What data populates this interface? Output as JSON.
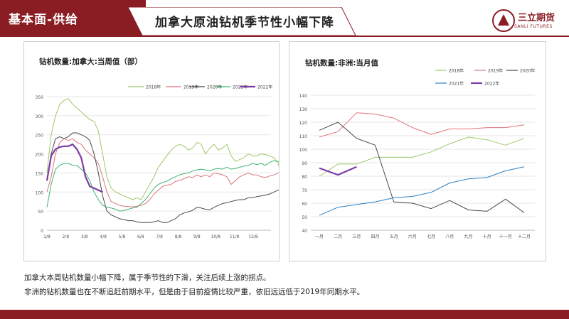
{
  "header": {
    "section": "基本面-供给",
    "title": "加拿大原油钻机季节性小幅下降",
    "logo_text": "三立期货",
    "logo_sub": "SANLI FUTURES"
  },
  "notes": [
    "加拿大本周钻机数量小幅下降，属于季节性的下滑，关注后续上涨的拐点。",
    "非洲的钻机数量也在不断追赶前期水平，但是由于目前疫情比较严重，依旧远远低于2019年同期水平。"
  ],
  "colors": {
    "2018": "#9dc86a",
    "2019": "#e0737a",
    "2020": "#4a4a4a",
    "2021_left": "#3cb371",
    "2021_right": "#2e7fbf",
    "2022": "#7b3aa6",
    "brand": "#8a1d24"
  },
  "chart_data": [
    {
      "type": "line",
      "title": "钻机数量:加拿大:当周值（部）",
      "x_ticks": [
        "1/8",
        "2/8",
        "3/8",
        "4/8",
        "5/8",
        "6/8",
        "7/8",
        "8/8",
        "9/8",
        "10/8",
        "11/8",
        "12/8"
      ],
      "ylim": [
        0,
        350
      ],
      "y_ticks": [
        0,
        50,
        100,
        150,
        200,
        250,
        300,
        350
      ],
      "grid": true,
      "legend": "top",
      "series": [
        {
          "name": "2018年",
          "color": "#9dc86a",
          "values": [
            150,
            250,
            300,
            330,
            340,
            345,
            330,
            320,
            310,
            300,
            290,
            285,
            260,
            200,
            140,
            110,
            100,
            95,
            90,
            85,
            80,
            85,
            80,
            100,
            120,
            140,
            165,
            180,
            195,
            210,
            220,
            225,
            220,
            210,
            215,
            230,
            225,
            200,
            215,
            225,
            210,
            215,
            225,
            195,
            180,
            185,
            190,
            200,
            195,
            195,
            200,
            198,
            195,
            190,
            175,
            130,
            75
          ]
        },
        {
          "name": "2019年",
          "color": "#e0737a",
          "values": [
            100,
            140,
            200,
            230,
            240,
            235,
            240,
            230,
            225,
            210,
            200,
            190,
            175,
            140,
            100,
            75,
            70,
            65,
            63,
            62,
            61,
            63,
            65,
            70,
            80,
            95,
            105,
            115,
            118,
            120,
            128,
            130,
            135,
            140,
            138,
            145,
            140,
            145,
            140,
            150,
            148,
            145,
            140,
            120,
            130,
            140,
            145,
            150,
            145,
            145,
            140,
            138,
            142,
            145,
            150,
            155,
            145,
            110
          ]
        },
        {
          "name": "2020年",
          "color": "#4a4a4a",
          "values": [
            130,
            200,
            240,
            245,
            240,
            245,
            255,
            255,
            250,
            245,
            235,
            200,
            150,
            90,
            50,
            40,
            35,
            30,
            28,
            25,
            25,
            22,
            20,
            20,
            20,
            22,
            25,
            20,
            20,
            25,
            30,
            40,
            45,
            48,
            52,
            60,
            58,
            55,
            53,
            60,
            65,
            70,
            72,
            75,
            78,
            80,
            80,
            85,
            85,
            88,
            90,
            92,
            95,
            100,
            105,
            110,
            105
          ]
        },
        {
          "name": "2021年",
          "color": "#3cb371",
          "values": [
            60,
            120,
            160,
            170,
            175,
            175,
            170,
            170,
            160,
            150,
            130,
            100,
            80,
            65,
            60,
            58,
            55,
            50,
            52,
            55,
            58,
            60,
            70,
            80,
            95,
            110,
            120,
            125,
            128,
            135,
            140,
            145,
            148,
            150,
            155,
            158,
            160,
            158,
            155,
            160,
            162,
            160,
            165,
            160,
            162,
            165,
            168,
            170,
            175,
            172,
            175,
            170,
            178,
            182,
            180,
            175,
            170
          ]
        },
        {
          "name": "2022年",
          "color": "#7b3aa6",
          "values": [
            130,
            195,
            212,
            218,
            220,
            220,
            225,
            212,
            190,
            140,
            115,
            110,
            105,
            100
          ]
        }
      ]
    },
    {
      "type": "line",
      "title": "钻机数量:非洲:当月值",
      "x_ticks": [
        "一月",
        "二月",
        "三月",
        "四月",
        "五月",
        "六月",
        "七月",
        "八月",
        "九月",
        "十月",
        "十一月",
        "十二月"
      ],
      "ylim": [
        40,
        140
      ],
      "y_ticks": [
        40,
        50,
        60,
        70,
        80,
        90,
        100,
        110,
        120,
        130,
        140
      ],
      "grid": true,
      "legend": "top",
      "series": [
        {
          "name": "2018年",
          "color": "#9dc86a",
          "values": [
            80,
            89,
            89,
            94,
            94,
            94,
            98,
            104,
            109,
            107,
            103,
            108
          ]
        },
        {
          "name": "2019年",
          "color": "#e0737a",
          "values": [
            109,
            113,
            127,
            126,
            123,
            116,
            111,
            115,
            115,
            116,
            116,
            118
          ]
        },
        {
          "name": "2020年",
          "color": "#4a4a4a",
          "values": [
            114,
            120,
            108,
            103,
            61,
            60,
            56,
            62,
            55,
            54,
            63,
            53
          ]
        },
        {
          "name": "2021年",
          "color": "#2e7fbf",
          "values": [
            51,
            57,
            59,
            61,
            64,
            65,
            68,
            75,
            78,
            79,
            84,
            87
          ]
        },
        {
          "name": "2022年",
          "color": "#7b3aa6",
          "values": [
            86,
            81,
            87
          ]
        }
      ]
    }
  ]
}
